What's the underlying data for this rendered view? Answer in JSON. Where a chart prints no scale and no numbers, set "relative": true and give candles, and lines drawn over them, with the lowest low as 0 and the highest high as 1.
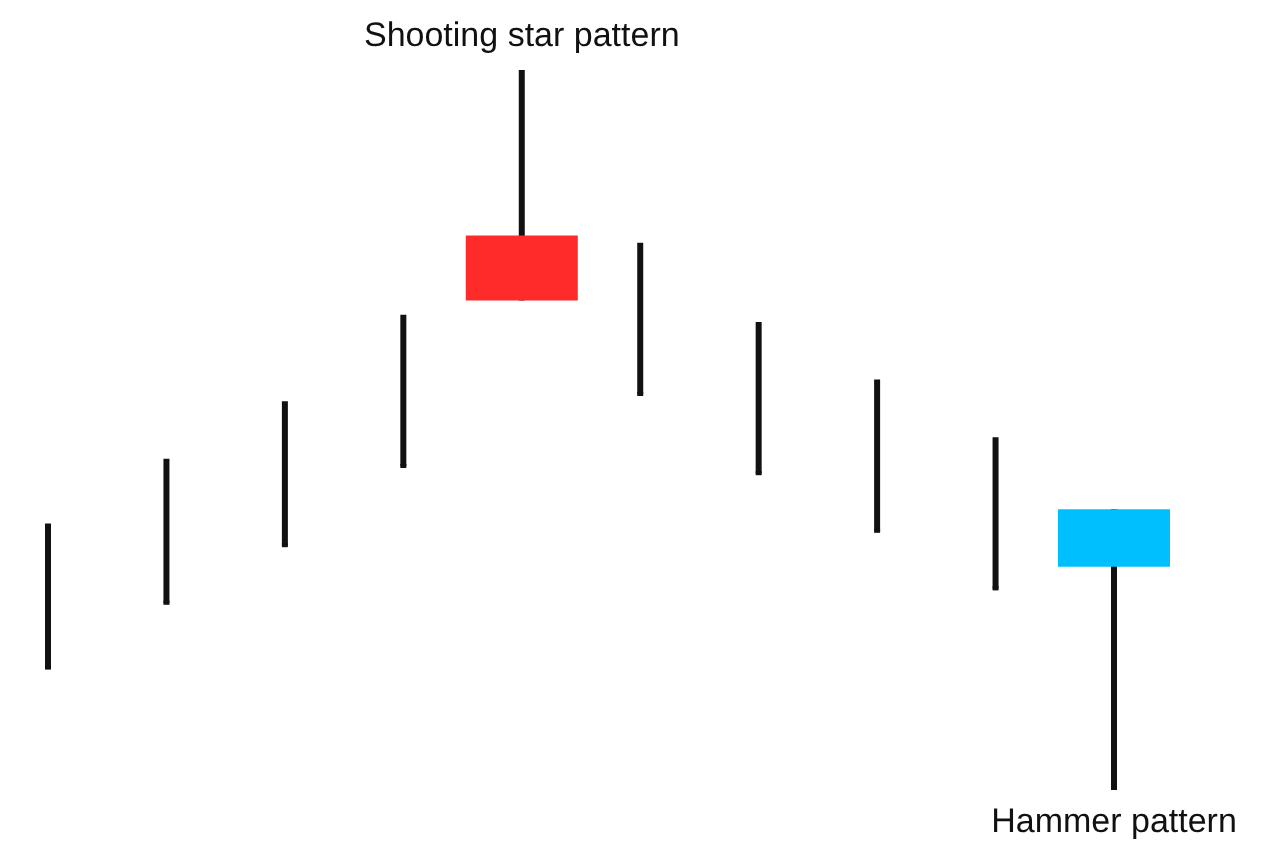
{
  "chart_data": {
    "type": "candlestick",
    "relative": true,
    "categories": [
      null,
      null,
      null,
      null,
      null,
      null,
      null,
      null,
      null,
      null
    ],
    "ohlc": [
      [
        0.17,
        0.37,
        0.17,
        0.17
      ],
      [
        0.26,
        0.46,
        0.26,
        0.26
      ],
      [
        0.34,
        0.54,
        0.34,
        0.34
      ],
      [
        0.45,
        0.66,
        0.45,
        0.45
      ],
      [
        0.77,
        1,
        0.68,
        0.68
      ],
      [
        0.55,
        0.76,
        0.55,
        0.55
      ],
      [
        0.44,
        0.65,
        0.44,
        0.44
      ],
      [
        0.36,
        0.57,
        0.36,
        0.36
      ],
      [
        0.28,
        0.49,
        0.28,
        0.28
      ],
      [
        0.31,
        0.39,
        0,
        0.39
      ]
    ],
    "colors": [
      "#111111",
      "#111111",
      "#111111",
      "#111111",
      "#ff2a2a",
      "#111111",
      "#111111",
      "#111111",
      "#111111",
      "#00bfff"
    ],
    "annotations": [
      "Shooting star pattern",
      "Hammer pattern"
    ]
  }
}
